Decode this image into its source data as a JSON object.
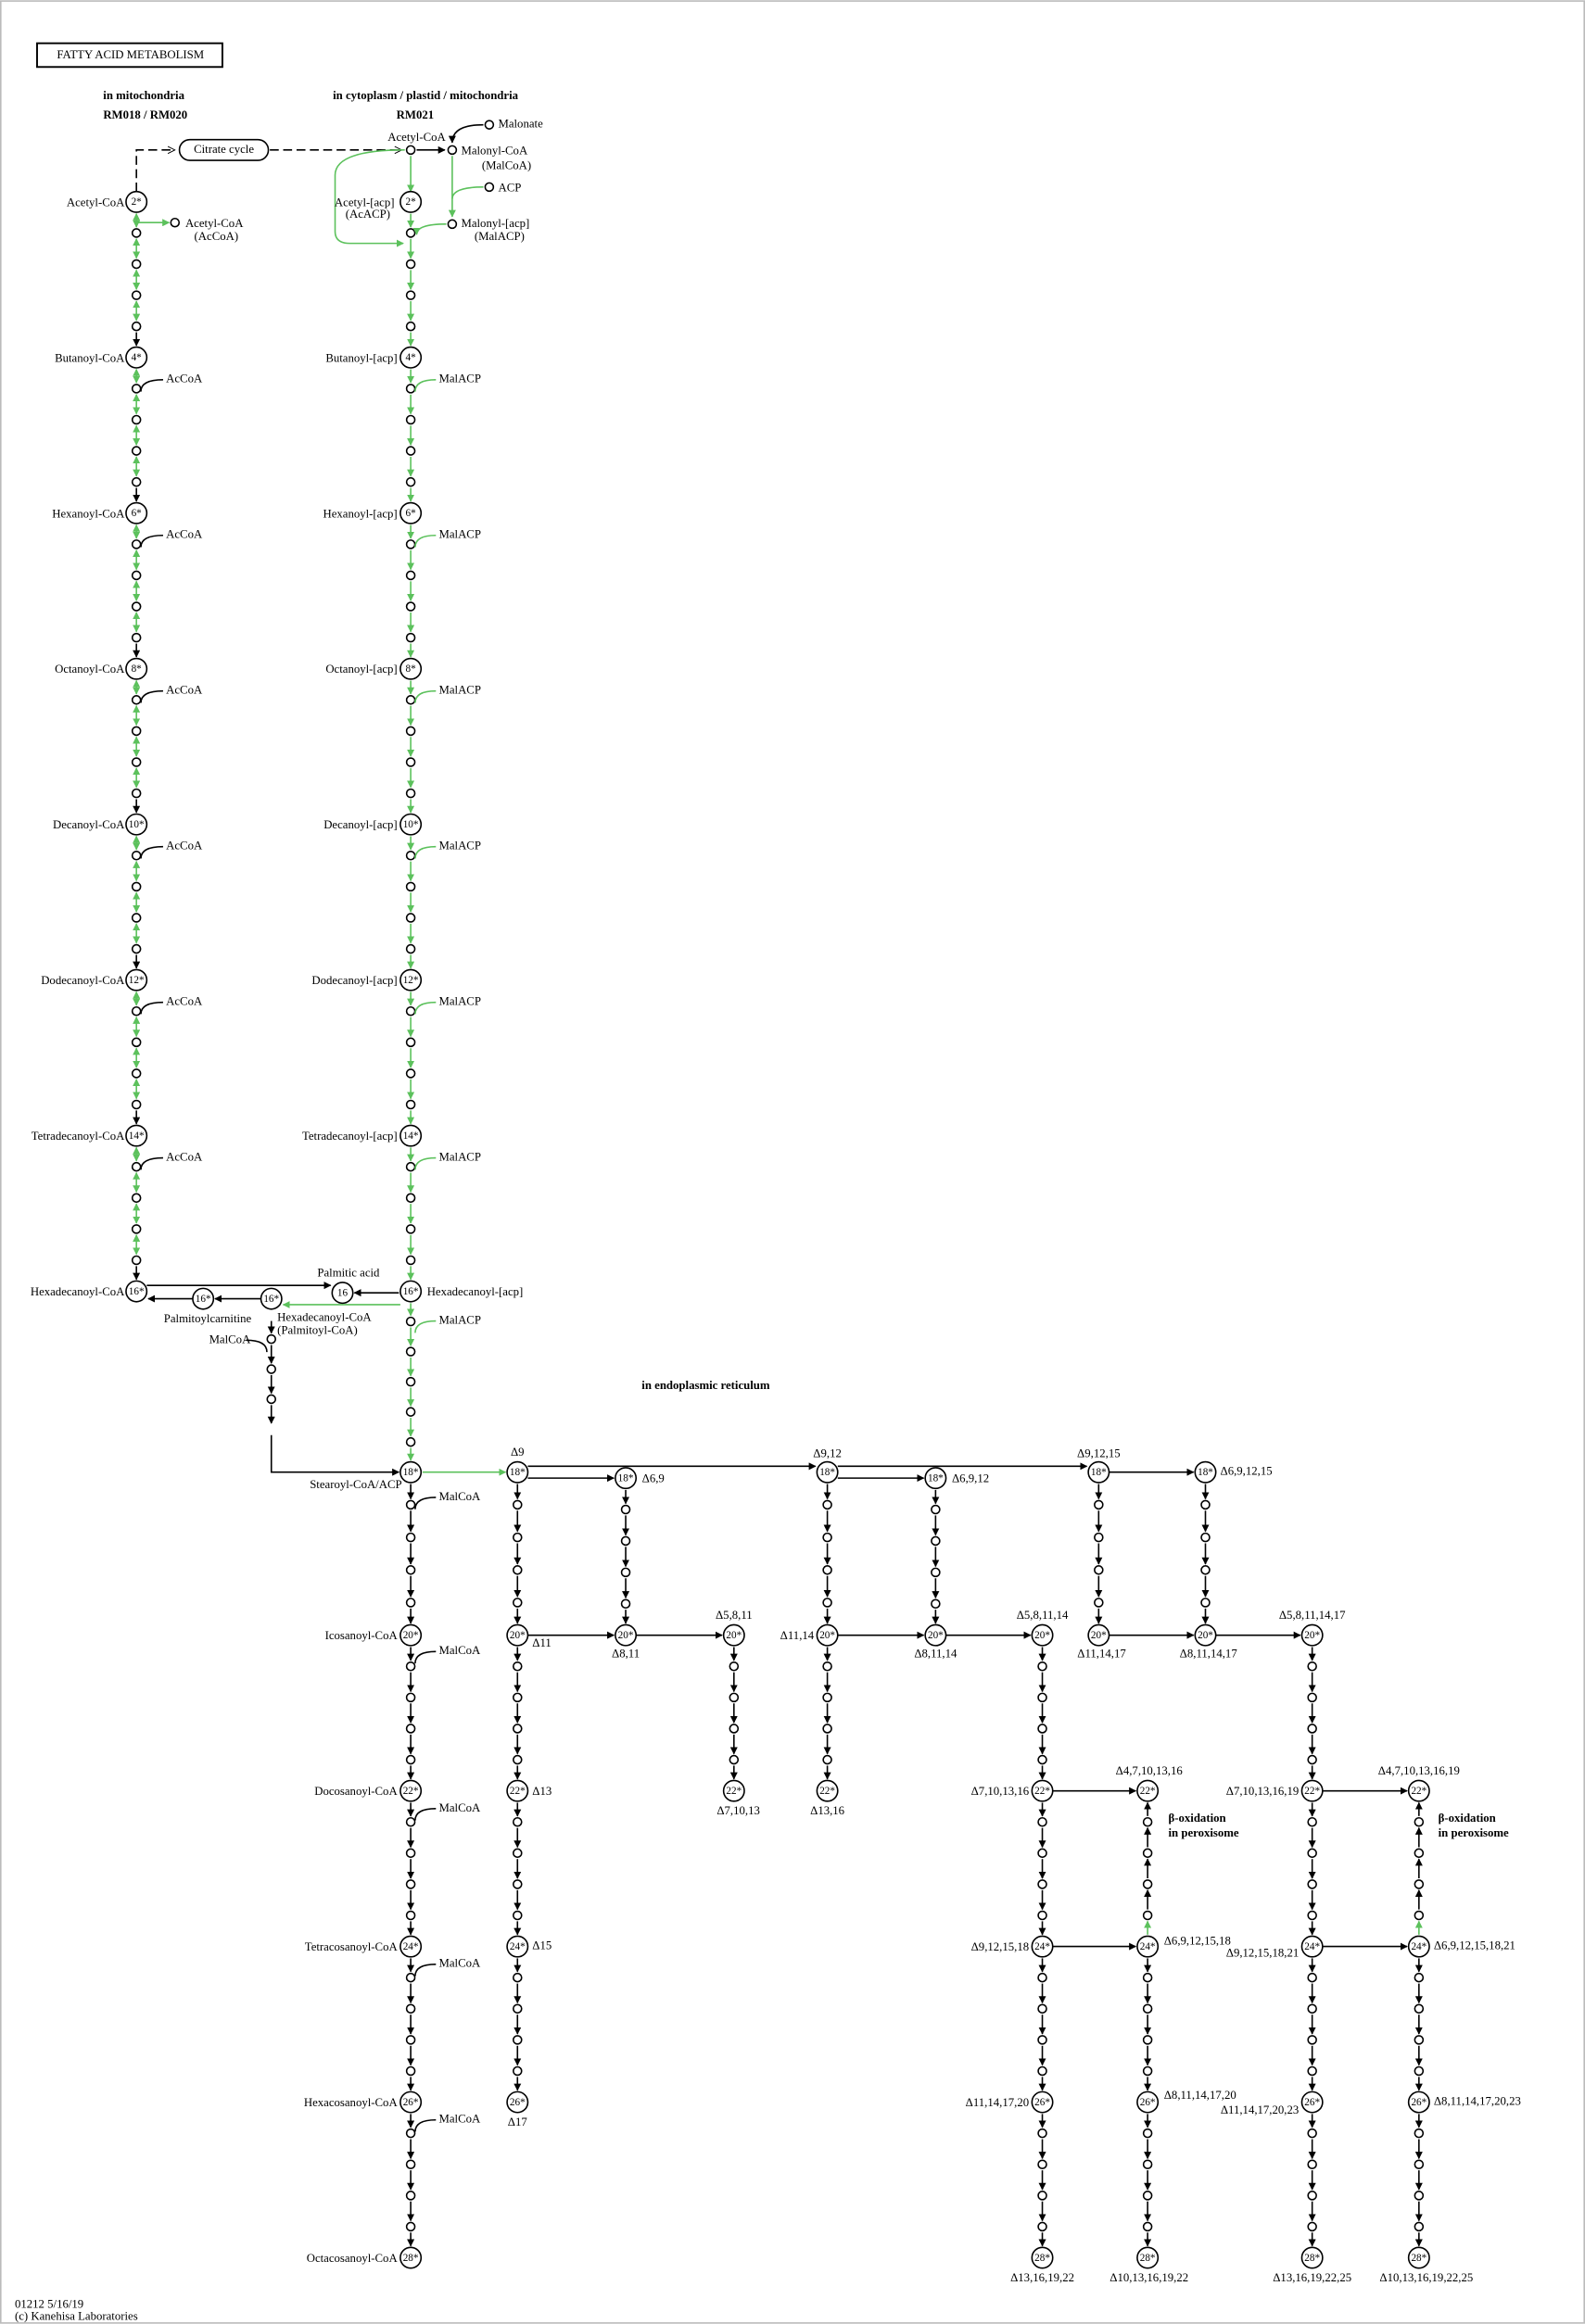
{
  "title": "FATTY ACID METABOLISM",
  "compartments": [
    "in mitochondria",
    "RM018 / RM020",
    "in cytoplasm / plastid / mitochondria",
    "RM021",
    "in endoplasmic reticulum"
  ],
  "notes": [
    "β-oxidation",
    "in peroxisome",
    "β-oxidation",
    "in peroxisome"
  ],
  "compounds": [
    "Acetyl-CoA",
    "Butanoyl-CoA",
    "Hexanoyl-CoA",
    "Octanoyl-CoA",
    "Decanoyl-CoA",
    "Dodecanoyl-CoA",
    "Tetradecanoyl-CoA",
    "Hexadecanoyl-CoA",
    "Acetyl-CoA",
    "(AcCoA)",
    "AcCoA",
    "AcCoA",
    "AcCoA",
    "AcCoA",
    "AcCoA",
    "AcCoA",
    "Acetyl-[acp]",
    "(AcACP)",
    "Butanoyl-[acp]",
    "Hexanoyl-[acp]",
    "Octanoyl-[acp]",
    "Decanoyl-[acp]",
    "Dodecanoyl-[acp]",
    "Tetradecanoyl-[acp]",
    "Hexadecanoyl-[acp]",
    "MalACP",
    "MalACP",
    "MalACP",
    "MalACP",
    "MalACP",
    "MalACP",
    "MalACP",
    "Acetyl-CoA",
    "Malonate",
    "Malonyl-CoA",
    "(MalCoA)",
    "ACP",
    "Malonyl-[acp]",
    "(MalACP)",
    "Citrate cycle",
    "Palmitic acid",
    "Palmitoylcarnitine",
    "Hexadecanoyl-CoA",
    "(Palmitoyl-CoA)",
    "MalCoA",
    "Stearoyl-CoA/ACP",
    "Icosanoyl-CoA",
    "Docosanoyl-CoA",
    "Tetracosanoyl-CoA",
    "Hexacosanoyl-CoA",
    "Octacosanoyl-CoA",
    "MalCoA",
    "MalCoA",
    "MalCoA",
    "MalCoA",
    "MalCoA"
  ],
  "deltas": [
    "Δ9",
    "Δ6,9",
    "Δ11",
    "Δ8,11",
    "Δ5,8,11",
    "Δ13",
    "Δ7,10,13",
    "Δ15",
    "Δ17",
    "Δ9,12",
    "Δ6,9,12",
    "Δ11,14",
    "Δ8,11,14",
    "Δ13,16",
    "Δ5,8,11,14",
    "Δ7,10,13,16",
    "Δ9,12,15,18",
    "Δ11,14,17,20",
    "Δ13,16,19,22",
    "Δ4,7,10,13,16",
    "Δ6,9,12,15,18",
    "Δ8,11,14,17,20",
    "Δ10,13,16,19,22",
    "Δ9,12,15",
    "Δ6,9,12,15",
    "Δ11,14,17",
    "Δ8,11,14,17",
    "Δ5,8,11,14,17",
    "Δ7,10,13,16,19",
    "Δ9,12,15,18,21",
    "Δ11,14,17,20,23",
    "Δ13,16,19,22,25",
    "Δ4,7,10,13,16,19",
    "Δ6,9,12,15,18,21",
    "Δ8,11,14,17,20,23",
    "Δ10,13,16,19,22,25"
  ],
  "nodes": [
    "2*",
    "4*",
    "6*",
    "8*",
    "10*",
    "12*",
    "14*",
    "16*",
    "2*",
    "4*",
    "6*",
    "8*",
    "10*",
    "12*",
    "14*",
    "16*",
    "18*",
    "20*",
    "22*",
    "24*",
    "26*",
    "28*",
    "16",
    "16*",
    "16*",
    "18*",
    "20*",
    "22*",
    "24*",
    "26*",
    "18*",
    "20*",
    "20*",
    "22*",
    "18*",
    "20*",
    "22*",
    "18*",
    "20*",
    "20*",
    "22*",
    "24*",
    "26*",
    "28*",
    "22*",
    "24*",
    "26*",
    "28*",
    "18*",
    "20*",
    "18*",
    "20*",
    "20*",
    "22*",
    "24*",
    "26*",
    "28*",
    "22*",
    "24*",
    "26*",
    "28*"
  ],
  "footer": [
    "01212 5/16/19",
    "(c) Kanehisa Laboratories"
  ]
}
